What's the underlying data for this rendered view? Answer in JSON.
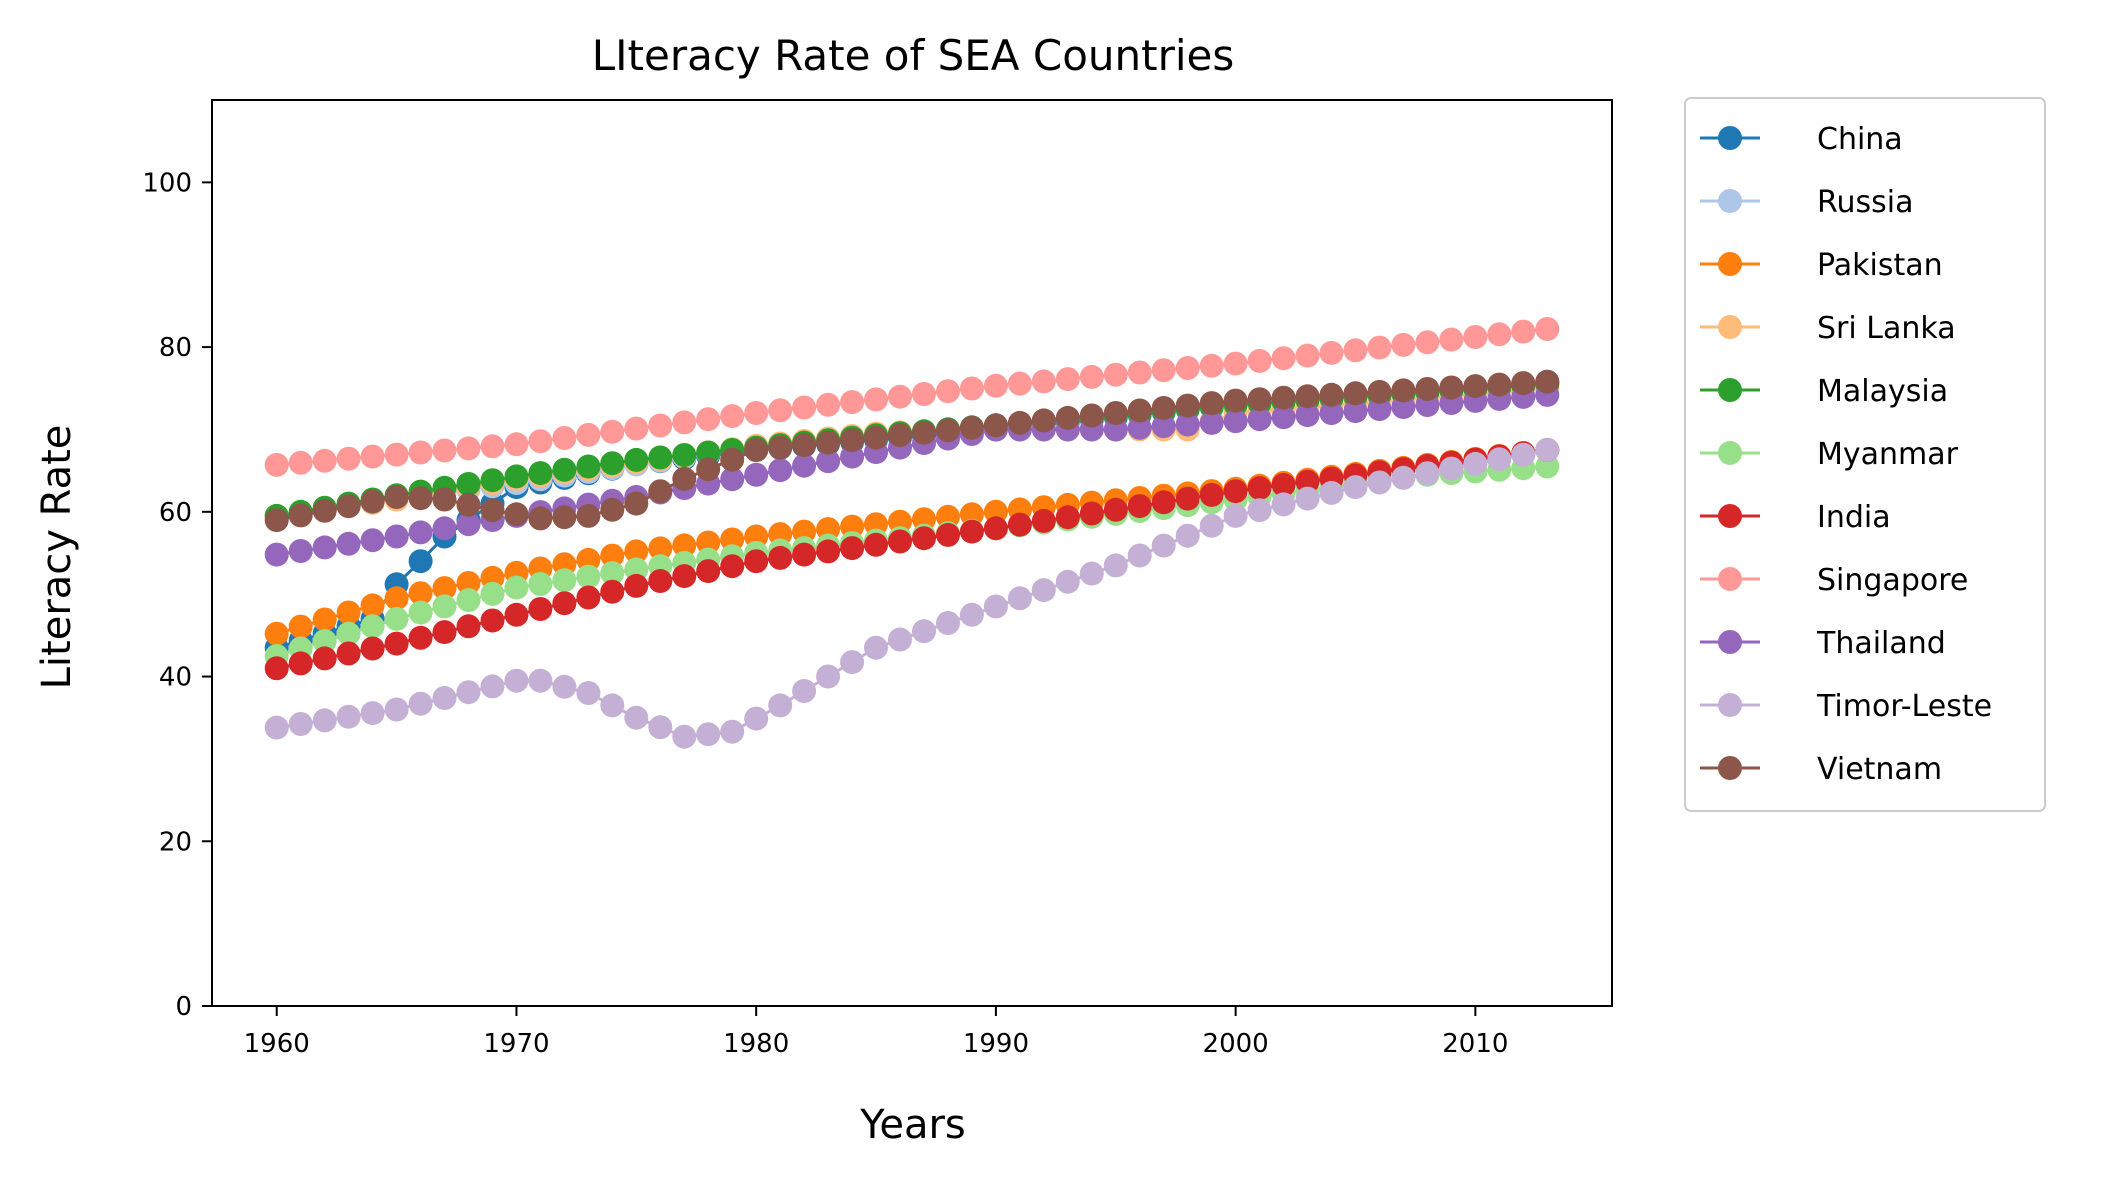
{
  "chart_data": {
    "type": "line",
    "title": "LIteracy Rate of SEA Countries",
    "xlabel": "Years",
    "ylabel": "Literacy Rate",
    "xlim": [
      1957.3,
      2015.7
    ],
    "ylim": [
      0,
      110
    ],
    "x_ticks": [
      "1960",
      "1970",
      "1980",
      "1990",
      "2000",
      "2010"
    ],
    "y_ticks": [
      "0",
      "20",
      "40",
      "60",
      "80",
      "100"
    ],
    "grid": false,
    "legend": {
      "position": "outside-right",
      "entries": [
        "China",
        "Russia",
        "Pakistan",
        "Sri Lanka",
        "Malaysia",
        "Myanmar",
        "India",
        "Singapore",
        "Thailand",
        "Timor-Leste",
        "Vietnam"
      ]
    },
    "x_start": 1960,
    "x_end": 2013,
    "series": [
      {
        "name": "China",
        "color": "#1f77b4",
        "knots": [
          [
            1960,
            43.5
          ],
          [
            1964,
            47.0
          ],
          [
            1965,
            51.2
          ],
          [
            1966,
            54.0
          ],
          [
            1967,
            57.0
          ],
          [
            1970,
            63.0
          ],
          [
            1975,
            65.8
          ],
          [
            1980,
            67.5
          ],
          [
            1990,
            70.0
          ],
          [
            2000,
            73.0
          ],
          [
            2013,
            75.8
          ]
        ]
      },
      {
        "name": "Russia",
        "color": "#aec7e8",
        "knots": [
          [
            1960,
            59.5
          ],
          [
            1965,
            61.5
          ],
          [
            1970,
            63.5
          ],
          [
            1980,
            68.0
          ],
          [
            1990,
            70.5
          ],
          [
            2000,
            73.0
          ],
          [
            2013,
            75.5
          ]
        ]
      },
      {
        "name": "Pakistan",
        "color": "#ff7f0e",
        "knots": [
          [
            1960,
            45.2
          ],
          [
            1965,
            49.5
          ],
          [
            1970,
            52.6
          ],
          [
            1975,
            55.2
          ],
          [
            1980,
            57.0
          ],
          [
            1990,
            60.0
          ],
          [
            2000,
            62.8
          ],
          [
            2013,
            67.5
          ]
        ]
      },
      {
        "name": "Sri Lanka",
        "color": "#ffbb78",
        "knots": [
          [
            1960,
            59.5
          ],
          [
            1965,
            61.5
          ],
          [
            1970,
            64.0
          ],
          [
            1980,
            68.0
          ],
          [
            1985,
            69.5
          ],
          [
            1990,
            70.2
          ],
          [
            1995,
            70.0
          ],
          [
            1998,
            70.0
          ],
          [
            2000,
            72.0
          ],
          [
            2013,
            75.0
          ]
        ]
      },
      {
        "name": "Malaysia",
        "color": "#2ca02c",
        "knots": [
          [
            1960,
            59.5
          ],
          [
            1965,
            62.0
          ],
          [
            1970,
            64.3
          ],
          [
            1975,
            66.3
          ],
          [
            1980,
            67.8
          ],
          [
            1985,
            69.3
          ],
          [
            1990,
            70.5
          ],
          [
            2000,
            73.0
          ],
          [
            2013,
            75.5
          ]
        ]
      },
      {
        "name": "Myanmar",
        "color": "#98df8a",
        "knots": [
          [
            1960,
            42.5
          ],
          [
            1965,
            47.0
          ],
          [
            1970,
            50.8
          ],
          [
            1975,
            53.0
          ],
          [
            1980,
            55.0
          ],
          [
            1990,
            58.0
          ],
          [
            2000,
            61.5
          ],
          [
            2008,
            64.5
          ],
          [
            2013,
            65.5
          ]
        ]
      },
      {
        "name": "India",
        "color": "#d62728",
        "knots": [
          [
            1960,
            41.0
          ],
          [
            1965,
            44.0
          ],
          [
            1970,
            47.5
          ],
          [
            1975,
            51.0
          ],
          [
            1980,
            54.0
          ],
          [
            1990,
            58.0
          ],
          [
            2000,
            62.5
          ],
          [
            2013,
            67.5
          ]
        ]
      },
      {
        "name": "Singapore",
        "color": "#ff9896",
        "knots": [
          [
            1960,
            65.7
          ],
          [
            1970,
            68.2
          ],
          [
            1980,
            72.0
          ],
          [
            1990,
            75.3
          ],
          [
            2000,
            78.0
          ],
          [
            2013,
            82.2
          ]
        ]
      },
      {
        "name": "Thailand",
        "color": "#9467bd",
        "knots": [
          [
            1960,
            54.8
          ],
          [
            1965,
            57.0
          ],
          [
            1970,
            59.5
          ],
          [
            1975,
            61.8
          ],
          [
            1980,
            64.5
          ],
          [
            1990,
            70.0
          ],
          [
            1995,
            70.0
          ],
          [
            2000,
            71.0
          ],
          [
            2013,
            74.2
          ]
        ]
      },
      {
        "name": "Timor-Leste",
        "color": "#c5b0d5",
        "knots": [
          [
            1960,
            33.8
          ],
          [
            1965,
            36.0
          ],
          [
            1970,
            39.5
          ],
          [
            1971,
            39.5
          ],
          [
            1973,
            38.0
          ],
          [
            1975,
            35.0
          ],
          [
            1977,
            32.7
          ],
          [
            1979,
            33.3
          ],
          [
            1981,
            36.5
          ],
          [
            1985,
            43.5
          ],
          [
            1990,
            48.5
          ],
          [
            1995,
            53.5
          ],
          [
            2000,
            59.5
          ],
          [
            2005,
            63.0
          ],
          [
            2013,
            67.5
          ]
        ]
      },
      {
        "name": "Vietnam",
        "color": "#8c564b",
        "knots": [
          [
            1960,
            59.0
          ],
          [
            1965,
            61.8
          ],
          [
            1967,
            61.5
          ],
          [
            1969,
            60.2
          ],
          [
            1971,
            59.2
          ],
          [
            1973,
            59.5
          ],
          [
            1975,
            61.0
          ],
          [
            1977,
            64.0
          ],
          [
            1980,
            67.5
          ],
          [
            1990,
            70.5
          ],
          [
            2000,
            73.5
          ],
          [
            2013,
            75.8
          ]
        ]
      }
    ]
  }
}
